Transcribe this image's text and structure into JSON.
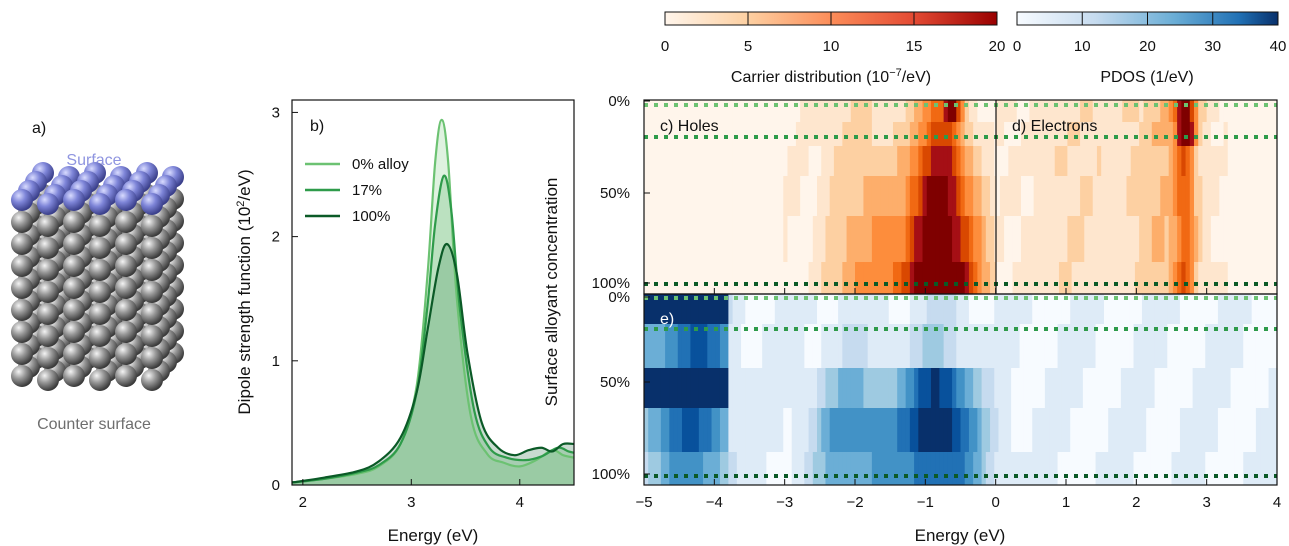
{
  "colors": {
    "green_light": "#6cc272",
    "green_mid": "#2e9b4a",
    "green_dark": "#0b5a27",
    "surface_blue": "#8f95e0",
    "counter_gray": "#6e6e6e",
    "hole_red": "#a50f15",
    "electron_blue": "#08306b"
  },
  "panel_a": {
    "label": "a)",
    "surface_label": "Surface",
    "counter_label": "Counter surface"
  },
  "panel_b": {
    "label": "b)",
    "xlabel": "Energy (eV)",
    "ylabel": "Dipole strength function (10",
    "ylabel_sup": "2",
    "ylabel_tail": "/eV)"
  },
  "colorbar_carrier": {
    "label": "Carrier distribution (10",
    "label_sup": "−7",
    "label_tail": "/eV)",
    "ticks": [
      "0",
      "5",
      "10",
      "15",
      "20"
    ],
    "range": [
      0,
      20
    ]
  },
  "colorbar_pdos": {
    "label": "PDOS (1/eV)",
    "ticks": [
      "0",
      "10",
      "20",
      "30",
      "40"
    ],
    "range": [
      0,
      40
    ]
  },
  "panel_c": {
    "label": "c) Holes"
  },
  "panel_d": {
    "label": "d) Electrons"
  },
  "panel_e": {
    "label": "e)"
  },
  "heatmaps": {
    "ylabel": "Surface alloyant concentration",
    "ytick_top": [
      "0%",
      "50%",
      "100%"
    ],
    "ytick_bottom": [
      "0%",
      "50%",
      "100%"
    ],
    "xlabel": "Energy (eV)",
    "xticks": [
      "−5",
      "−4",
      "−3",
      "−2",
      "−1",
      "0",
      "1",
      "2",
      "3",
      "4"
    ]
  },
  "chart_data": [
    {
      "type": "area",
      "panel": "b",
      "xlabel": "Energy (eV)",
      "ylabel": "Dipole strength function (10^2/eV)",
      "xlim": [
        1.9,
        4.5
      ],
      "ylim": [
        0,
        3.1
      ],
      "xticks": [
        "2",
        "3",
        "4"
      ],
      "yticks": [
        "0",
        "1",
        "2",
        "3"
      ],
      "legend_position": "top-left",
      "series": [
        {
          "name": "0% alloy",
          "peak_x": 3.28,
          "peak_y": 2.94,
          "width": 0.09,
          "x": [
            1.9,
            2.2,
            2.5,
            2.7,
            2.9,
            3.05,
            3.15,
            3.22,
            3.28,
            3.34,
            3.42,
            3.55,
            3.7,
            3.85,
            4.0,
            4.15,
            4.3,
            4.4,
            4.5
          ],
          "y": [
            0.02,
            0.05,
            0.09,
            0.15,
            0.33,
            0.8,
            1.7,
            2.6,
            2.94,
            2.6,
            1.5,
            0.55,
            0.25,
            0.18,
            0.15,
            0.2,
            0.28,
            0.24,
            0.22
          ]
        },
        {
          "name": "17%",
          "peak_x": 3.3,
          "peak_y": 2.49,
          "width": 0.1,
          "x": [
            1.9,
            2.2,
            2.5,
            2.7,
            2.9,
            3.05,
            3.15,
            3.22,
            3.3,
            3.37,
            3.45,
            3.58,
            3.72,
            3.88,
            4.05,
            4.2,
            4.35,
            4.45,
            4.5
          ],
          "y": [
            0.02,
            0.05,
            0.1,
            0.16,
            0.33,
            0.75,
            1.45,
            2.1,
            2.49,
            2.2,
            1.4,
            0.6,
            0.3,
            0.22,
            0.2,
            0.23,
            0.3,
            0.27,
            0.26
          ]
        },
        {
          "name": "100%",
          "peak_x": 3.33,
          "peak_y": 1.94,
          "width": 0.12,
          "x": [
            1.9,
            2.2,
            2.5,
            2.7,
            2.9,
            3.05,
            3.15,
            3.25,
            3.33,
            3.42,
            3.52,
            3.65,
            3.8,
            3.95,
            4.08,
            4.2,
            4.3,
            4.4,
            4.5
          ],
          "y": [
            0.02,
            0.06,
            0.11,
            0.19,
            0.38,
            0.75,
            1.25,
            1.75,
            1.94,
            1.7,
            1.05,
            0.5,
            0.3,
            0.24,
            0.28,
            0.3,
            0.27,
            0.33,
            0.33
          ]
        }
      ]
    },
    {
      "type": "heatmap",
      "panel": "c",
      "title": "c) Holes",
      "x_range": [
        -5,
        0
      ],
      "y_range": [
        "0%",
        "100%"
      ],
      "colorscale": "Reds",
      "value_range": [
        0,
        20
      ]
    },
    {
      "type": "heatmap",
      "panel": "d",
      "title": "d) Electrons",
      "x_range": [
        0,
        4
      ],
      "y_range": [
        "0%",
        "100%"
      ],
      "colorscale": "Reds",
      "value_range": [
        0,
        20
      ]
    },
    {
      "type": "heatmap",
      "panel": "e",
      "title": "e)",
      "x_range": [
        -5,
        4
      ],
      "y_range": [
        "0%",
        "100%"
      ],
      "colorscale": "Blues",
      "value_range": [
        0,
        40
      ]
    }
  ]
}
